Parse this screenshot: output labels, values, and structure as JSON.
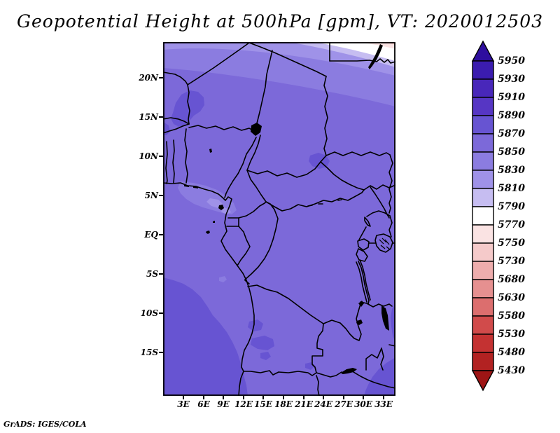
{
  "title": "Geopotential Height at 500hPa [gpm], VT: 2020012503",
  "attribution": "GrADS: IGES/COLA",
  "map": {
    "lat_labels": [
      "20N",
      "15N",
      "10N",
      "5N",
      "EQ",
      "5S",
      "10S",
      "15S"
    ],
    "lon_labels": [
      "3E",
      "6E",
      "9E",
      "12E",
      "15E",
      "18E",
      "21E",
      "24E",
      "27E",
      "30E",
      "33E"
    ],
    "band_colors": {
      "dark": "#6754d2",
      "main": "#7c69d9",
      "light1": "#8b7ce0",
      "light2": "#9f92e8",
      "light3": "#c6bdf1",
      "white": "#ffffff",
      "pink1": "#fae3e3",
      "pink2": "#f5caca"
    }
  },
  "colorbar": {
    "labels": [
      "5950",
      "5930",
      "5910",
      "5890",
      "5870",
      "5850",
      "5830",
      "5810",
      "5790",
      "5770",
      "5750",
      "5730",
      "5680",
      "5630",
      "5580",
      "5530",
      "5480",
      "5430"
    ],
    "colors": [
      "#3b1caf",
      "#4827ba",
      "#5636c4",
      "#6754d2",
      "#7c69d9",
      "#8b7ce0",
      "#9f92e8",
      "#c6bdf1",
      "#ffffff",
      "#fae3e3",
      "#f5caca",
      "#eeadad",
      "#e69090",
      "#dc6e6e",
      "#d14b4b",
      "#c43232",
      "#b22222"
    ],
    "arrow_top_color": "#2e0e9e",
    "arrow_bottom_color": "#9e1515"
  },
  "chart_data": {
    "type": "heatmap",
    "title": "Geopotential Height at 500hPa [gpm], VT: 2020012503",
    "variable": "Geopotential Height",
    "level": "500hPa",
    "units": "gpm",
    "valid_time": "2020012503",
    "renderer": "GrADS: IGES/COLA",
    "x_ticks": [
      "3E",
      "6E",
      "9E",
      "12E",
      "15E",
      "18E",
      "21E",
      "24E",
      "27E",
      "30E",
      "33E"
    ],
    "y_ticks": [
      "20N",
      "15N",
      "10N",
      "5N",
      "EQ",
      "5S",
      "10S",
      "15S"
    ],
    "lon_range_deg_east": [
      0,
      35
    ],
    "lat_range_deg": [
      -20.5,
      24.5
    ],
    "colorbar_levels_top_to_bottom": [
      5950,
      5930,
      5910,
      5890,
      5870,
      5850,
      5830,
      5810,
      5790,
      5770,
      5750,
      5730,
      5680,
      5630,
      5580,
      5530,
      5480,
      5430
    ],
    "legend_position": "right",
    "grid": false,
    "field_summary": [
      {
        "region": "most of the domain (central Africa)",
        "approx_value_gpm": "5850-5870"
      },
      {
        "region": "southwest corner (Atlantic off Angola/Namibia)",
        "approx_value_gpm": "5870-5890"
      },
      {
        "region": "isolated maxima near 16N 4E, 9.5N 23E, 13-15S 13-16E, bottom-right corner",
        "approx_value_gpm": "5870-5890"
      },
      {
        "region": "north of 18N, values decrease northward in bands",
        "approx_value_gpm": "5850 down to 5790"
      },
      {
        "region": "far northeast corner (Egypt/Sudan border, Lake Nasser)",
        "approx_value_gpm": "5730-5770 (white to pale pink)"
      },
      {
        "region": "Gulf of Guinea coast near 5N 4-10E",
        "approx_value_gpm": "5810-5850 local minimum"
      }
    ]
  }
}
